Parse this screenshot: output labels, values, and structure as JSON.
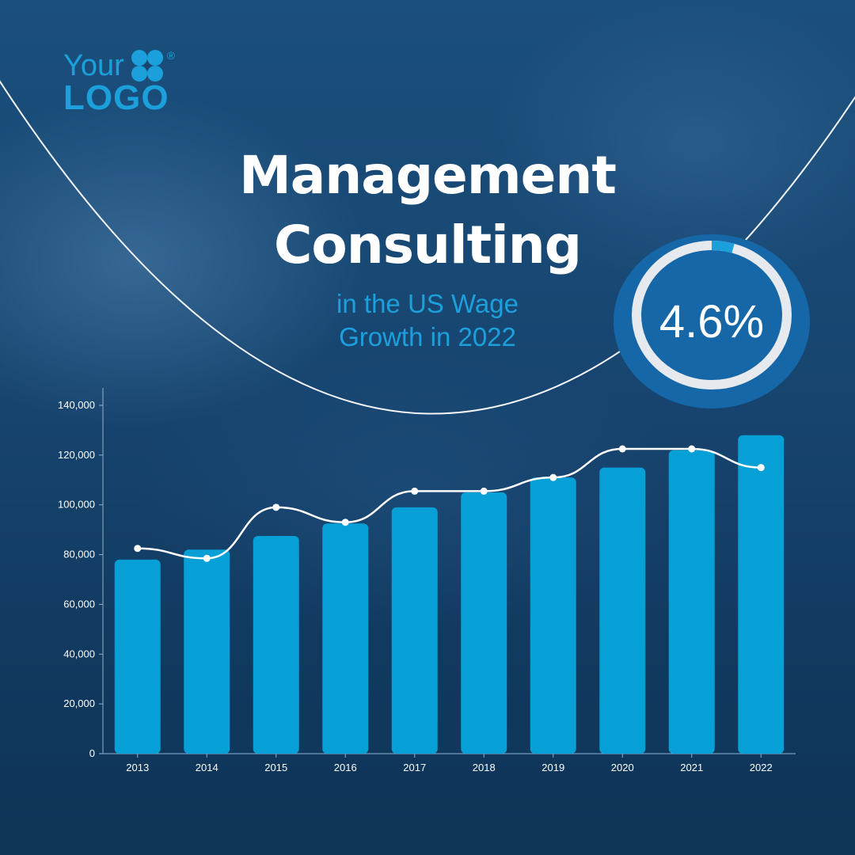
{
  "logo": {
    "line1": "Your",
    "line2": "LOGO",
    "registered": "®"
  },
  "header": {
    "title_line1": "Management",
    "title_line2": "Consulting"
  },
  "subtitle": {
    "line1": "in the US Wage",
    "line2": "Growth in 2022"
  },
  "badge": {
    "value": "4.6%",
    "fraction": 0.046
  },
  "colors": {
    "bar": "#069fd6",
    "line": "#ffffff",
    "accent": "#1ba0dc",
    "badge": "#1667a7"
  },
  "chart_data": {
    "type": "bar",
    "categories": [
      "2013",
      "2014",
      "2015",
      "2016",
      "2017",
      "2018",
      "2019",
      "2020",
      "2021",
      "2022"
    ],
    "series": [
      {
        "type": "bar",
        "values": [
          78000,
          82000,
          87500,
          92500,
          99000,
          105000,
          111000,
          115000,
          122000,
          128000
        ]
      },
      {
        "type": "line",
        "values": [
          82500,
          78500,
          99000,
          93000,
          105500,
          105500,
          111000,
          122500,
          122500,
          115000
        ]
      }
    ],
    "y_ticks": [
      "0",
      "20,000",
      "40,000",
      "60,000",
      "80,000",
      "100,000",
      "120,000",
      "140,000"
    ],
    "ylim": [
      0,
      147000
    ],
    "grid": false,
    "title": "",
    "xlabel": "",
    "ylabel": ""
  }
}
